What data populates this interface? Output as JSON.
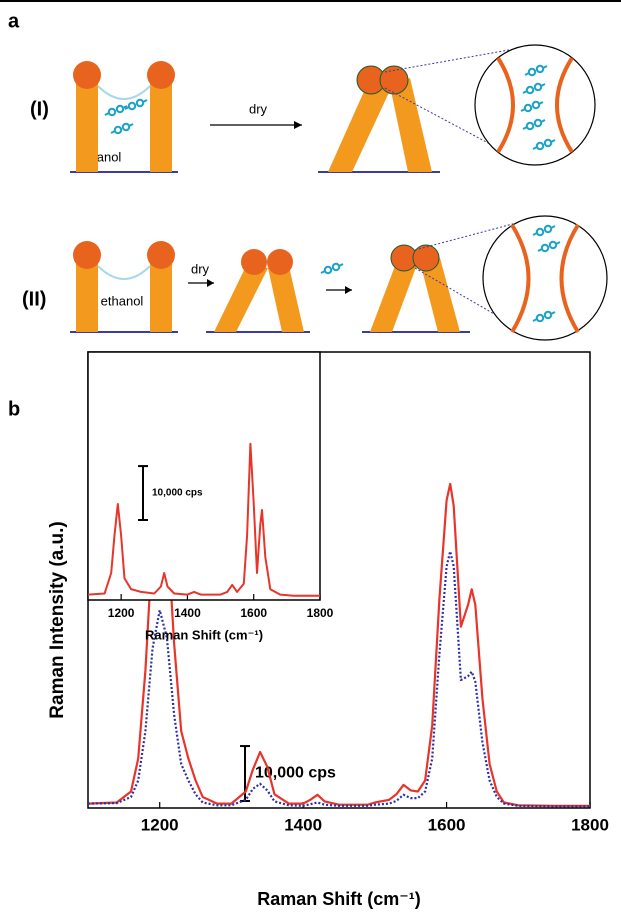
{
  "panel_a": {
    "label": "a",
    "rows": [
      {
        "label": "(I)",
        "solvent": "ethanol",
        "step": "dry"
      },
      {
        "label": "(II)",
        "solvent": "ethanol",
        "step": "dry"
      }
    ]
  },
  "panel_b": {
    "label": "b"
  },
  "chart_data": [
    {
      "type": "line",
      "xlabel": "Raman Shift (cm⁻¹)",
      "ylabel": "Raman Intensity (a.u.)",
      "xlim": [
        1100,
        1800
      ],
      "xticks": [
        1200,
        1400,
        1600,
        1800
      ],
      "ylim": [
        0,
        83000
      ],
      "scale_bar": {
        "value": 10000,
        "label": "10,000 cps"
      },
      "x": [
        1100,
        1140,
        1160,
        1170,
        1180,
        1190,
        1200,
        1210,
        1220,
        1230,
        1240,
        1250,
        1260,
        1280,
        1300,
        1320,
        1330,
        1340,
        1350,
        1360,
        1380,
        1400,
        1410,
        1420,
        1430,
        1450,
        1490,
        1500,
        1520,
        1530,
        1540,
        1550,
        1560,
        1570,
        1580,
        1590,
        1600,
        1605,
        1610,
        1620,
        1630,
        1635,
        1640,
        1650,
        1660,
        1670,
        1680,
        1700,
        1750,
        1800
      ],
      "series": [
        {
          "color": "#e8352a",
          "style": "solid",
          "values": [
            800,
            1000,
            3000,
            9000,
            25000,
            48000,
            60500,
            52000,
            30000,
            14000,
            9000,
            5000,
            2000,
            800,
            800,
            3000,
            7000,
            10200,
            7500,
            2500,
            800,
            800,
            1500,
            2400,
            1200,
            600,
            600,
            1000,
            1500,
            2500,
            4200,
            3200,
            3000,
            5000,
            15000,
            38000,
            56000,
            59000,
            55000,
            33000,
            37000,
            39800,
            37000,
            20000,
            8000,
            3000,
            1000,
            500,
            400,
            400
          ]
        },
        {
          "color": "#2b2fa8",
          "style": "dotted",
          "values": [
            800,
            900,
            2000,
            5000,
            14000,
            29000,
            36000,
            31000,
            17000,
            8000,
            5000,
            2500,
            1000,
            500,
            500,
            1500,
            3500,
            4400,
            3200,
            1200,
            500,
            400,
            700,
            1000,
            600,
            400,
            400,
            600,
            800,
            1300,
            2400,
            1800,
            1800,
            3000,
            9000,
            28000,
            44000,
            46700,
            44000,
            23300,
            24000,
            24800,
            23000,
            12000,
            5000,
            2000,
            800,
            400,
            300,
            300
          ]
        }
      ]
    },
    {
      "type": "line",
      "xlabel": "Raman Shift (cm⁻¹)",
      "xlim": [
        1100,
        1800
      ],
      "xticks": [
        1200,
        1400,
        1600,
        1800
      ],
      "ylim": [
        0,
        46000
      ],
      "scale_bar": {
        "value": 10000,
        "label": "10,000 cps"
      },
      "x": [
        1100,
        1150,
        1170,
        1180,
        1190,
        1200,
        1210,
        1230,
        1260,
        1300,
        1320,
        1330,
        1340,
        1360,
        1400,
        1420,
        1440,
        1500,
        1520,
        1535,
        1550,
        1570,
        1580,
        1590,
        1600,
        1610,
        1620,
        1625,
        1635,
        1650,
        1680,
        1720,
        1800
      ],
      "series": [
        {
          "color": "#e8352a",
          "style": "solid",
          "values": [
            1000,
            1200,
            5000,
            12000,
            17800,
            12000,
            4000,
            2000,
            1500,
            1200,
            2500,
            5000,
            2500,
            1200,
            1000,
            1500,
            1000,
            1000,
            1500,
            2800,
            1500,
            3000,
            12000,
            29000,
            18000,
            5000,
            14000,
            16700,
            8000,
            2000,
            1000,
            800,
            800
          ]
        }
      ]
    }
  ]
}
